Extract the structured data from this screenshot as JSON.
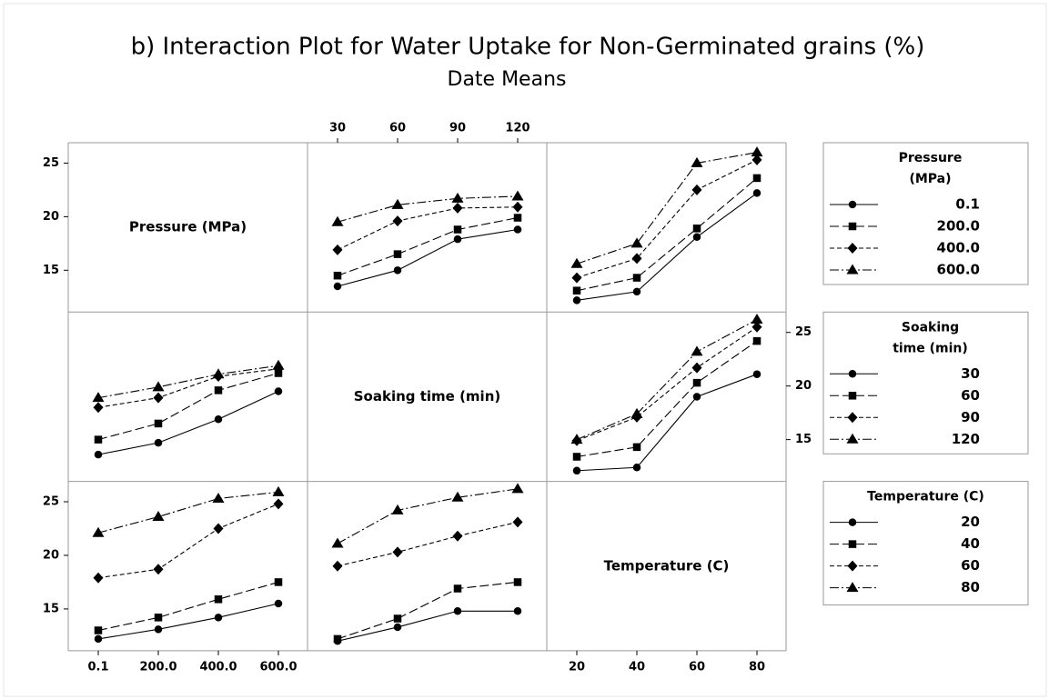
{
  "chart_data": {
    "type": "interaction_matrix",
    "title": "b) Interaction Plot for Water Uptake for Non-Germinated grains (%)",
    "subtitle": "Date Means",
    "color": "#000000",
    "markers": [
      "circle",
      "square",
      "diamond",
      "triangle"
    ],
    "ylim": [
      11.1,
      26.9
    ],
    "yticks": [
      15,
      20,
      25
    ],
    "factors": [
      {
        "name": "Pressure (MPa)",
        "legend_title": [
          "Pressure",
          "(MPa)"
        ],
        "levels": [
          "0.1",
          "200.0",
          "400.0",
          "600.0"
        ]
      },
      {
        "name": "Soaking time (min)",
        "legend_title": [
          "Soaking",
          "time (min)"
        ],
        "levels": [
          "30",
          "60",
          "90",
          "120"
        ]
      },
      {
        "name": "Temperature (C)",
        "legend_title": [
          "Temperature (C)"
        ],
        "levels": [
          "20",
          "40",
          "60",
          "80"
        ]
      }
    ],
    "cells": [
      [
        null,
        [
          [
            13.5,
            15.0,
            17.9,
            18.8
          ],
          [
            14.5,
            16.5,
            18.8,
            19.9
          ],
          [
            16.9,
            19.6,
            20.8,
            20.9
          ],
          [
            19.5,
            21.1,
            21.7,
            21.9
          ]
        ],
        [
          [
            12.2,
            13.0,
            18.1,
            22.2
          ],
          [
            13.1,
            14.3,
            18.9,
            23.6
          ],
          [
            14.3,
            16.1,
            22.5,
            25.3
          ],
          [
            15.6,
            17.5,
            25.0,
            26.0
          ]
        ]
      ],
      [
        [
          [
            13.6,
            14.7,
            16.9,
            19.5
          ],
          [
            15.0,
            16.5,
            19.6,
            21.2
          ],
          [
            18.0,
            18.9,
            20.9,
            21.6
          ],
          [
            18.9,
            19.9,
            21.1,
            21.9
          ]
        ],
        null,
        [
          [
            12.1,
            12.4,
            19.0,
            21.1
          ],
          [
            13.4,
            14.3,
            20.3,
            24.2
          ],
          [
            14.9,
            17.1,
            21.7,
            25.5
          ],
          [
            15.0,
            17.4,
            23.2,
            26.2
          ]
        ]
      ],
      [
        [
          [
            12.2,
            13.1,
            14.2,
            15.5
          ],
          [
            13.0,
            14.2,
            15.9,
            17.5
          ],
          [
            17.9,
            18.7,
            22.5,
            24.8
          ],
          [
            22.1,
            23.6,
            25.3,
            25.9
          ]
        ],
        [
          [
            12.0,
            13.3,
            14.8,
            14.8
          ],
          [
            12.2,
            14.1,
            16.9,
            17.5
          ],
          [
            19.0,
            20.3,
            21.8,
            23.1
          ],
          [
            21.1,
            24.2,
            25.4,
            26.2
          ]
        ],
        null
      ]
    ]
  }
}
